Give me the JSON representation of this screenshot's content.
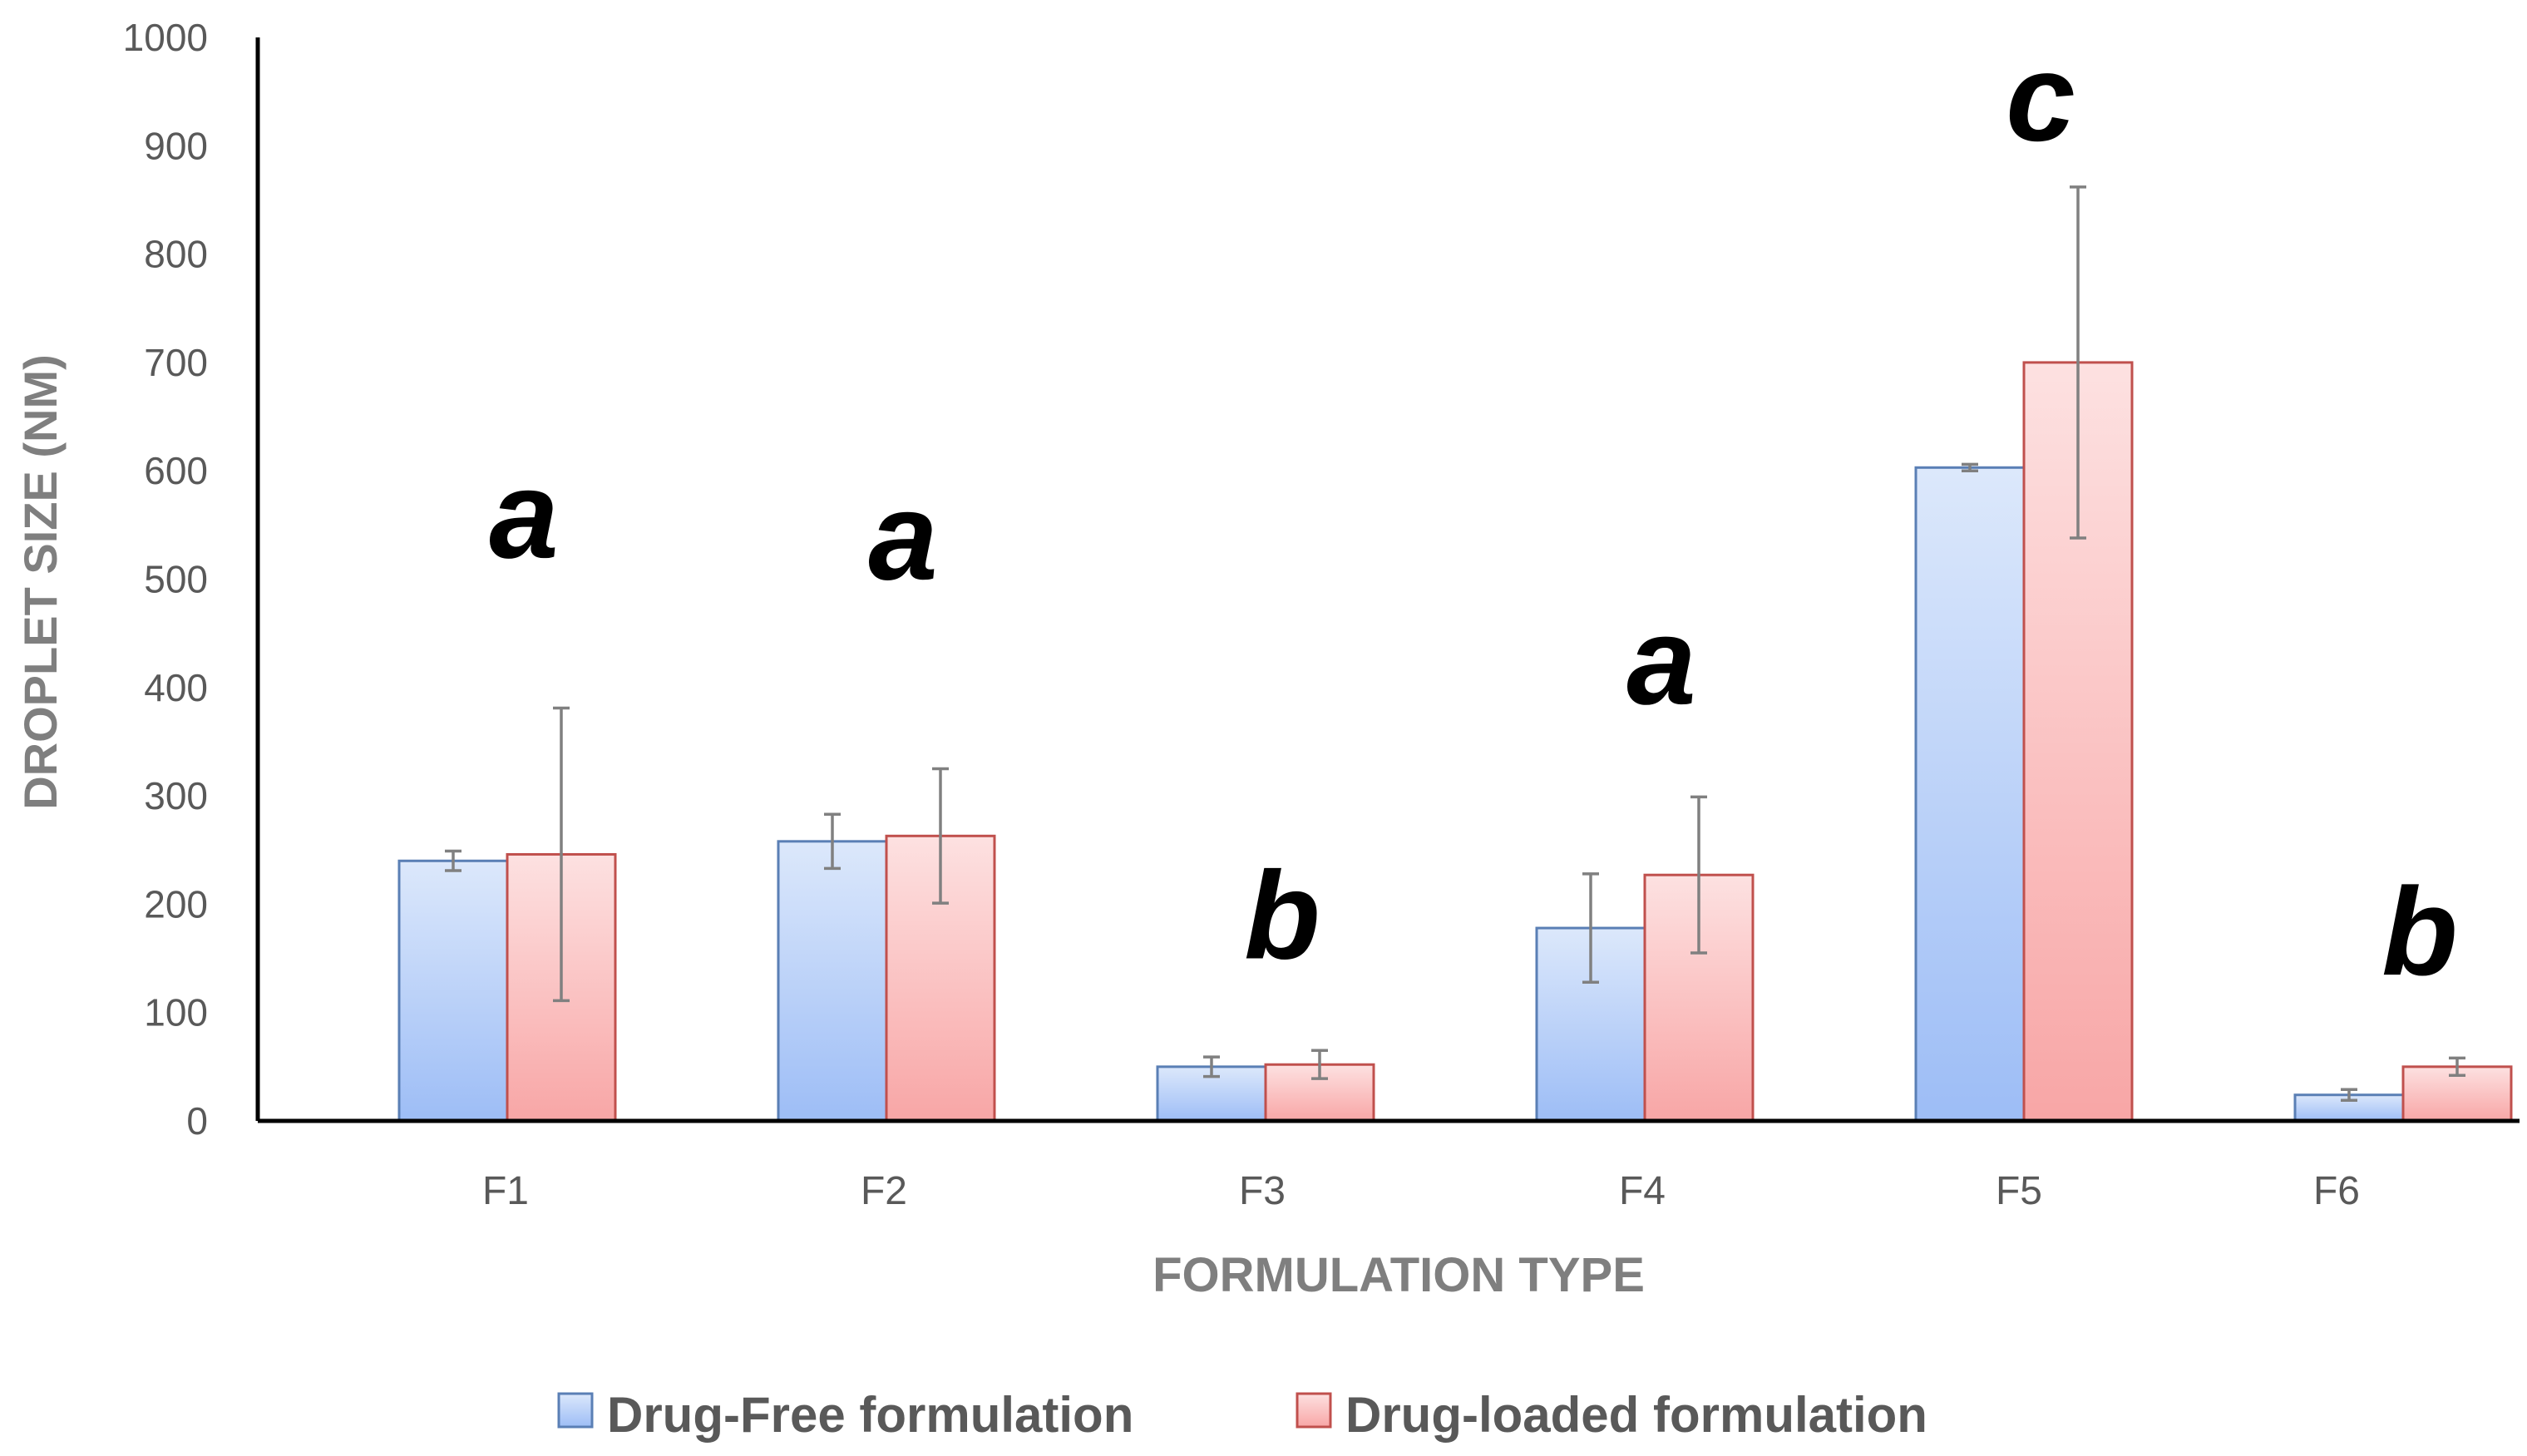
{
  "chart_data": {
    "type": "bar",
    "title": "",
    "xlabel": "FORMULATION TYPE",
    "ylabel": "DROPLET SIZE (NM)",
    "ylim": [
      0,
      1000
    ],
    "yticks": [
      0,
      100,
      200,
      300,
      400,
      500,
      600,
      700,
      800,
      900,
      1000
    ],
    "categories": [
      "F1",
      "F2",
      "F3",
      "F4",
      "F5",
      "F6"
    ],
    "series": [
      {
        "name": "Drug-Free formulation",
        "values": [
          240,
          258,
          50,
          178,
          603,
          24
        ],
        "errors": [
          9,
          25,
          9,
          50,
          3,
          5
        ],
        "color_top": "#dce8fb",
        "color_bottom": "#9dbdf6",
        "stroke": "#5a7fb5"
      },
      {
        "name": "Drug-loaded formulation",
        "values": [
          246,
          263,
          52,
          227,
          700,
          50
        ],
        "errors": [
          135,
          62,
          13,
          72,
          162,
          8
        ],
        "color_top": "#fde1e1",
        "color_bottom": "#f8a6a6",
        "stroke": "#c0504d"
      }
    ],
    "annotations": [
      {
        "category": "F1",
        "text": "a",
        "y": 520
      },
      {
        "category": "F2",
        "text": "a",
        "y": 500
      },
      {
        "category": "F3",
        "text": "b",
        "y": 150
      },
      {
        "category": "F4",
        "text": "a",
        "y": 385
      },
      {
        "category": "F5",
        "text": "c",
        "y": 905
      },
      {
        "category": "F6",
        "text": "b",
        "y": 135
      }
    ],
    "legend_position": "bottom",
    "grid": false
  }
}
